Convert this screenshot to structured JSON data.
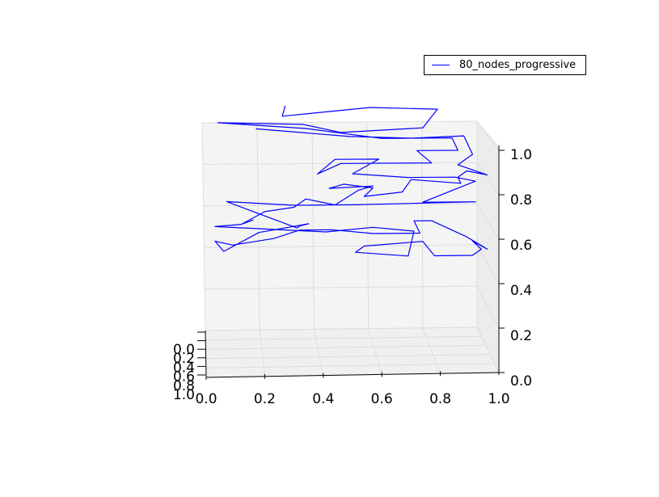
{
  "chart_data": {
    "type": "line",
    "projection": "3d",
    "view": "front (looking along the y axis)",
    "legend": {
      "placement": "top-right",
      "entries": [
        {
          "label": "80_nodes_progressive",
          "color": "#0000ff"
        }
      ]
    },
    "xlim": [
      0.0,
      1.0
    ],
    "ylim": [
      0.0,
      1.0
    ],
    "zlim": [
      0.0,
      1.0
    ],
    "x_ticks": [
      "0.0",
      "0.2",
      "0.4",
      "0.6",
      "0.8",
      "1.0"
    ],
    "y_ticks": [
      "0.0",
      "0.2",
      "0.4",
      "0.6",
      "0.8",
      "1.0"
    ],
    "z_ticks": [
      "0.0",
      "0.2",
      "0.4",
      "0.6",
      "0.8",
      "1.0"
    ],
    "grid": true,
    "series": [
      {
        "name": "80_nodes_progressive",
        "color": "#0000ff",
        "x": [
          0.27,
          0.26,
          0.56,
          0.79,
          0.74,
          0.46,
          0.33,
          0.04,
          0.34,
          0.6,
          0.84,
          0.86,
          0.72,
          0.77,
          0.46,
          0.38,
          0.44,
          0.59,
          0.5,
          0.69,
          0.85,
          0.92,
          0.74,
          0.92,
          0.51,
          0.3,
          0.07,
          0.31,
          0.32,
          0.35,
          0.18,
          0.06,
          0.03,
          0.09,
          0.23,
          0.32,
          0.43,
          0.57,
          0.73,
          0.71,
          0.77,
          0.89,
          0.96,
          0.91,
          0.94,
          0.91,
          0.78,
          0.74,
          0.54,
          0.51,
          0.69,
          0.71,
          0.57,
          0.41,
          0.03,
          0.12,
          0.16,
          0.12,
          0.2,
          0.3,
          0.34,
          0.44,
          0.52,
          0.57,
          0.42,
          0.47,
          0.57,
          0.54,
          0.67,
          0.7,
          0.87,
          0.86,
          0.89,
          0.96,
          0.86,
          0.91,
          0.88,
          0.7,
          0.49,
          0.17
        ],
        "y": [
          0.5,
          0.5,
          0.5,
          0.5,
          0.5,
          0.5,
          0.5,
          0.5,
          0.5,
          0.5,
          0.5,
          0.5,
          0.5,
          0.5,
          0.5,
          0.5,
          0.5,
          0.5,
          0.5,
          0.5,
          0.5,
          0.5,
          0.5,
          0.5,
          0.5,
          0.5,
          0.5,
          0.5,
          0.5,
          0.5,
          0.5,
          0.5,
          0.5,
          0.5,
          0.5,
          0.5,
          0.5,
          0.5,
          0.5,
          0.5,
          0.5,
          0.5,
          0.5,
          0.5,
          0.5,
          0.5,
          0.5,
          0.5,
          0.5,
          0.5,
          0.5,
          0.5,
          0.5,
          0.5,
          0.5,
          0.5,
          0.5,
          0.5,
          0.5,
          0.5,
          0.5,
          0.5,
          0.5,
          0.5,
          0.5,
          0.5,
          0.5,
          0.5,
          0.5,
          0.5,
          0.5,
          0.5,
          0.5,
          0.5,
          0.5,
          0.5,
          0.5,
          0.5,
          0.5,
          0.5
        ],
        "z": [
          1.08,
          1.03,
          1.07,
          1.06,
          0.97,
          0.95,
          0.99,
          1.0,
          0.97,
          0.92,
          0.92,
          0.86,
          0.86,
          0.8,
          0.8,
          0.75,
          0.82,
          0.82,
          0.75,
          0.73,
          0.73,
          0.71,
          0.61,
          0.61,
          0.6,
          0.6,
          0.62,
          0.49,
          0.5,
          0.51,
          0.47,
          0.38,
          0.43,
          0.41,
          0.44,
          0.48,
          0.48,
          0.46,
          0.46,
          0.52,
          0.52,
          0.44,
          0.38,
          0.42,
          0.38,
          0.35,
          0.35,
          0.42,
          0.4,
          0.37,
          0.35,
          0.47,
          0.49,
          0.47,
          0.5,
          0.51,
          0.53,
          0.51,
          0.57,
          0.59,
          0.63,
          0.6,
          0.67,
          0.69,
          0.68,
          0.7,
          0.68,
          0.64,
          0.66,
          0.72,
          0.7,
          0.73,
          0.76,
          0.74,
          0.79,
          0.84,
          0.93,
          0.92,
          0.93,
          0.97
        ]
      }
    ]
  }
}
